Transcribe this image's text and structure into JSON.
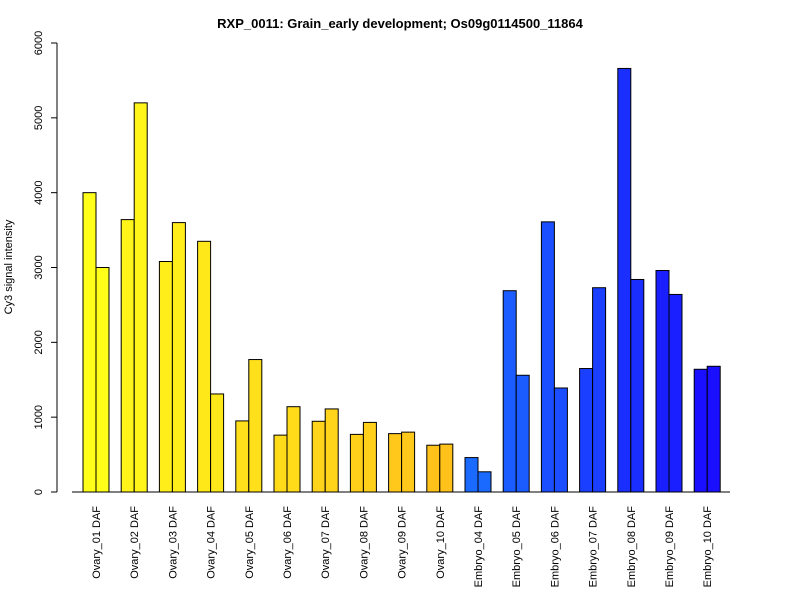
{
  "chart_data": {
    "type": "bar",
    "title": "RXP_0011: Grain_early development; Os09g0114500_11864",
    "xlabel": "",
    "ylabel": "Cy3 signal intensity",
    "ylim": [
      0,
      6000
    ],
    "yticks": [
      "0",
      "1000",
      "2000",
      "3000",
      "4000",
      "5000",
      "6000"
    ],
    "grid": false,
    "categories": [
      "Ovary_01 DAF",
      "Ovary_02 DAF",
      "Ovary_03 DAF",
      "Ovary_04 DAF",
      "Ovary_05 DAF",
      "Ovary_06 DAF",
      "Ovary_07 DAF",
      "Ovary_08 DAF",
      "Ovary_09 DAF",
      "Ovary_10 DAF",
      "Embryo_04 DAF",
      "Embryo_05 DAF",
      "Embryo_06 DAF",
      "Embryo_07 DAF",
      "Embryo_08 DAF",
      "Embryo_09 DAF",
      "Embryo_10 DAF"
    ],
    "colors": [
      "#ffff1a",
      "#fff51a",
      "#ffee1a",
      "#ffe81a",
      "#ffe01a",
      "#ffdb1a",
      "#ffd41a",
      "#ffcf1a",
      "#ffc81a",
      "#ffc21a",
      "#1a6aff",
      "#1a5cff",
      "#1a4eff",
      "#1a3fff",
      "#1a2eff",
      "#1a1fff",
      "#1a10ff"
    ],
    "series": [
      {
        "values": [
          4000,
          3640,
          3080,
          3350,
          950,
          760,
          945,
          770,
          780,
          625,
          460,
          2690,
          3610,
          1650,
          5660,
          2960,
          1640
        ]
      },
      {
        "values": [
          3000,
          5200,
          3600,
          1310,
          1770,
          1140,
          1110,
          930,
          800,
          640,
          270,
          1560,
          1390,
          2730,
          2840,
          2640,
          1680
        ]
      }
    ]
  }
}
